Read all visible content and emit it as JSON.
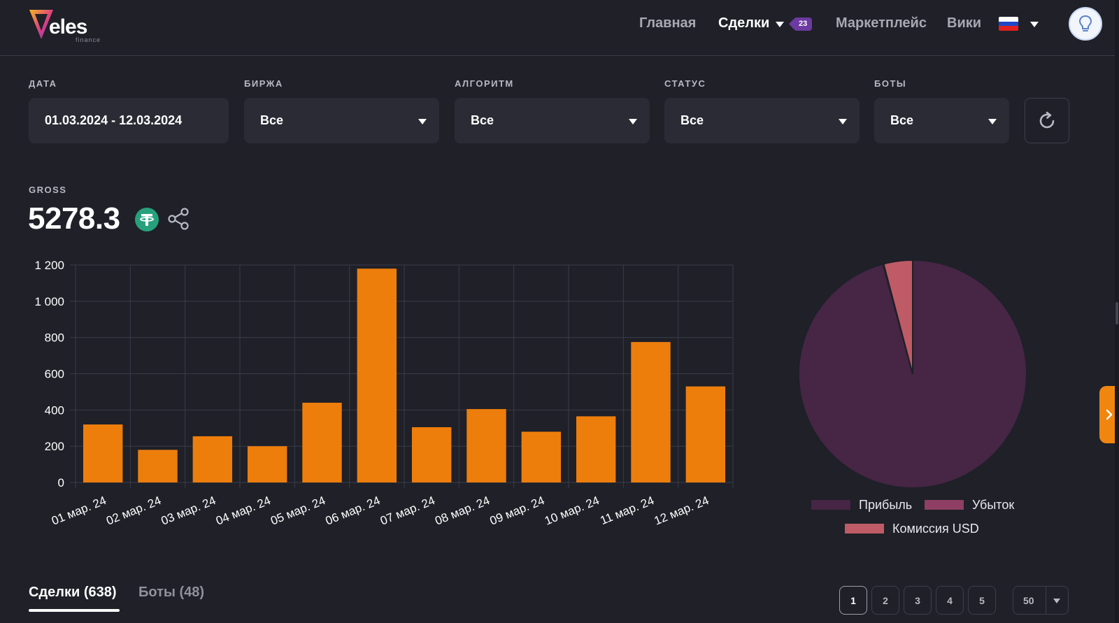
{
  "brand": {
    "name": "eles",
    "sub": "finance"
  },
  "nav": {
    "items": [
      "Главная",
      "Сделки",
      "Маркетплейс",
      "Вики"
    ],
    "deals_badge": "23"
  },
  "filters": {
    "date": {
      "label": "ДАТА",
      "value": "01.03.2024 - 12.03.2024"
    },
    "exchange": {
      "label": "БИРЖА",
      "value": "Все"
    },
    "algorithm": {
      "label": "АЛГОРИТМ",
      "value": "Все"
    },
    "status": {
      "label": "СТАТУС",
      "value": "Все"
    },
    "bots": {
      "label": "БОТЫ",
      "value": "Все"
    }
  },
  "gross": {
    "label": "GROSS",
    "value": "5278.3"
  },
  "chart_data": [
    {
      "type": "bar",
      "categories": [
        "01 мар. 24",
        "02 мар. 24",
        "03 мар. 24",
        "04 мар. 24",
        "05 мар. 24",
        "06 мар. 24",
        "07 мар. 24",
        "08 мар. 24",
        "09 мар. 24",
        "10 мар. 24",
        "11 мар. 24",
        "12 мар. 24"
      ],
      "values": [
        320,
        180,
        255,
        200,
        440,
        1180,
        305,
        405,
        280,
        365,
        775,
        530
      ],
      "yticks": [
        "0",
        "200",
        "400",
        "600",
        "800",
        "1 000",
        "1 200"
      ],
      "ylim": [
        0,
        1200
      ],
      "grid": true,
      "color": "#ed7e0c"
    },
    {
      "type": "pie",
      "labels": [
        "Прибыль",
        "Убыток",
        "Комиссия USD"
      ],
      "values": [
        95.8,
        0.1,
        4.1
      ],
      "colors": [
        "#462545",
        "#8e3f63",
        "#bf5b66"
      ],
      "legend_position": "bottom"
    }
  ],
  "tabs": [
    {
      "label": "Сделки (638)",
      "active": true
    },
    {
      "label": "Боты (48)",
      "active": false
    }
  ],
  "pagination": {
    "pages": [
      "1",
      "2",
      "3",
      "4",
      "5"
    ],
    "current": "1",
    "page_size": "50"
  },
  "colors": {
    "accent": "#ed7e0c",
    "background": "#1f2028",
    "field": "#2a2b34",
    "badge": "#6c3aa0"
  }
}
